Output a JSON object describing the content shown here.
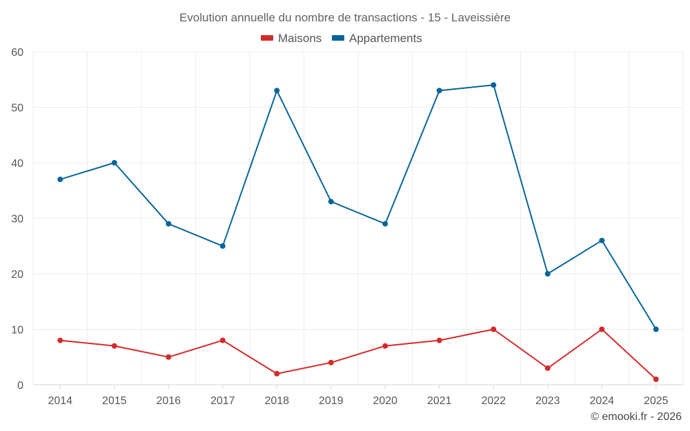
{
  "chart_data": {
    "type": "line",
    "title": "Evolution annuelle du nombre de transactions - 15 - Laveissière",
    "categories": [
      "2014",
      "2015",
      "2016",
      "2017",
      "2018",
      "2019",
      "2020",
      "2021",
      "2022",
      "2023",
      "2024",
      "2025"
    ],
    "series": [
      {
        "name": "Maisons",
        "color": "#d32a2a",
        "values": [
          8,
          7,
          5,
          8,
          2,
          4,
          7,
          8,
          10,
          3,
          10,
          1
        ]
      },
      {
        "name": "Appartements",
        "color": "#066598",
        "values": [
          37,
          40,
          29,
          25,
          53,
          33,
          29,
          53,
          54,
          20,
          26,
          10
        ]
      }
    ],
    "ylim": [
      0,
      60
    ],
    "yticks": [
      0,
      10,
      20,
      30,
      40,
      50,
      60
    ],
    "xlabel": "",
    "ylabel": "",
    "grid": true,
    "legend_position": "top-center"
  },
  "credit": "© emooki.fr - 2026"
}
